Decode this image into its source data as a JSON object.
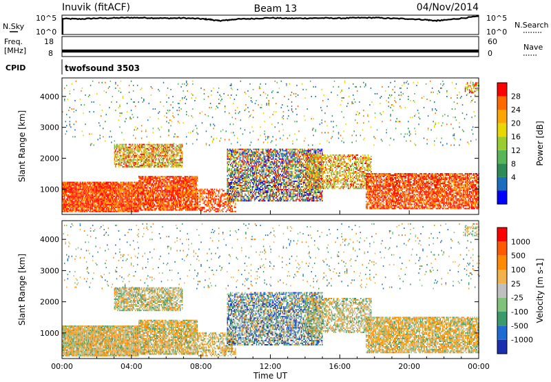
{
  "header": {
    "station": "Inuvik (fitACF)",
    "beam": "Beam 13",
    "date": "04/Nov/2014"
  },
  "chart_data": [
    {
      "type": "line",
      "panel": "noise",
      "left_label": "N.Sky",
      "right_label": "N.Search",
      "left_ticks": [
        "10^5",
        "10^0"
      ],
      "right_ticks": [
        "10^5",
        "10^0"
      ],
      "y_scale": "log",
      "series": [
        {
          "name": "N.Sky",
          "style": "solid",
          "x_hours": [
            0,
            1,
            2,
            3,
            4,
            5,
            6,
            7,
            8,
            8.5,
            9,
            9.5,
            10,
            11,
            12,
            13,
            14,
            15,
            16,
            17,
            18,
            19,
            20,
            21,
            21.5,
            22,
            23,
            24
          ],
          "values_log10": [
            4.1,
            4.0,
            4.2,
            4.25,
            4.35,
            4.3,
            4.2,
            4.25,
            4.05,
            3.9,
            3.55,
            3.7,
            3.95,
            4.1,
            4.3,
            4.15,
            4.2,
            4.25,
            4.2,
            4.3,
            4.35,
            4.15,
            4.05,
            3.8,
            3.55,
            3.7,
            4.2,
            4.7
          ]
        }
      ]
    },
    {
      "type": "line",
      "panel": "frequency",
      "left_label": "Freq. [MHz]",
      "right_label": "Nave",
      "left_ticks": [
        "18",
        "8"
      ],
      "right_ticks": [
        "60",
        "0"
      ],
      "frequency_MHz_band": [
        10,
        11.5
      ]
    },
    {
      "type": "label",
      "panel": "cpid",
      "left_label": "CPID",
      "program": "twofsound 3503"
    },
    {
      "type": "heatmap",
      "panel": "power",
      "ylabel": "Slant Range [km]",
      "colorbar_label": "Power [dB]",
      "colorbar_ticks": [
        "28",
        "24",
        "20",
        "16",
        "12",
        "8",
        "4"
      ],
      "colorbar_colors": [
        "#0000ff",
        "#1b6dc0",
        "#2e8b57",
        "#58b558",
        "#9acd32",
        "#e8d800",
        "#ffa500",
        "#ff6a00",
        "#ff0000"
      ],
      "yticks": [
        1000,
        2000,
        3000,
        4000
      ],
      "ylim": [
        180,
        4600
      ],
      "xlim_hours": [
        0,
        24
      ]
    },
    {
      "type": "heatmap",
      "panel": "velocity",
      "ylabel": "Slant Range [km]",
      "colorbar_label": "Velocity [m s-1]",
      "colorbar_ticks": [
        "1000",
        "500",
        "100",
        "25",
        "-25",
        "-100",
        "-500",
        "-1000"
      ],
      "colorbar_colors": [
        "#1a2fb0",
        "#1f6bd6",
        "#3a9a6a",
        "#7fc27a",
        "#c0c0c0",
        "#f2b14a",
        "#ff8a00",
        "#ff5a00",
        "#ff0000"
      ],
      "yticks": [
        1000,
        2000,
        3000,
        4000
      ],
      "ylim": [
        180,
        4600
      ],
      "xlim_hours": [
        0,
        24
      ]
    }
  ],
  "x_axis": {
    "ticks": [
      "00:00",
      "04:00",
      "08:00",
      "12:00",
      "16:00",
      "20:00",
      "00:00"
    ],
    "label": "Time UT"
  }
}
